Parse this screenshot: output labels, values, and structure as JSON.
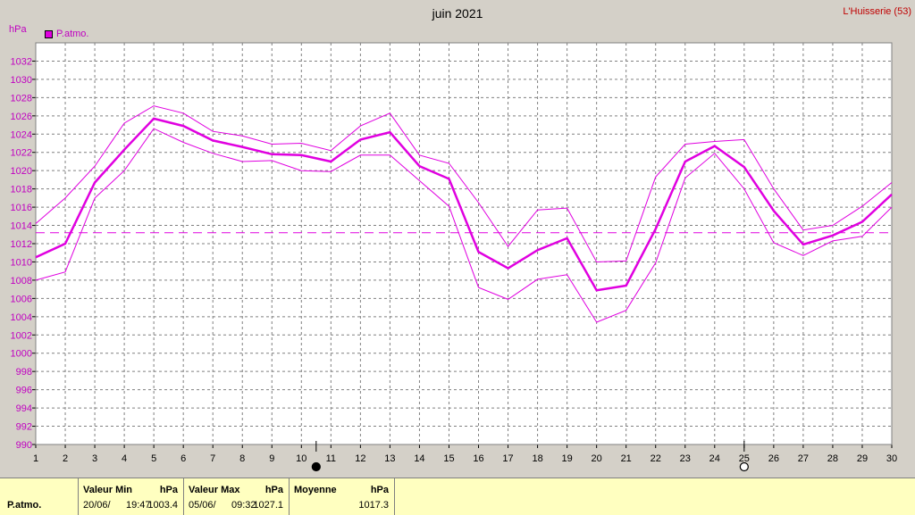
{
  "header": {
    "title": "juin 2021",
    "station": "L'Huisserie (53)",
    "unit": "hPa",
    "legend_label": "P.atmo."
  },
  "chart_data": {
    "type": "line",
    "title": "juin 2021",
    "ylabel": "hPa",
    "x": [
      1,
      2,
      3,
      4,
      5,
      6,
      7,
      8,
      9,
      10,
      11,
      12,
      13,
      14,
      15,
      16,
      17,
      18,
      19,
      20,
      21,
      22,
      23,
      24,
      25,
      26,
      27,
      28,
      29,
      30
    ],
    "ylim": [
      990,
      1034
    ],
    "yticks": [
      990,
      992,
      994,
      996,
      998,
      1000,
      1002,
      1004,
      1006,
      1008,
      1010,
      1012,
      1014,
      1016,
      1018,
      1020,
      1022,
      1024,
      1026,
      1028,
      1030,
      1032
    ],
    "grid": true,
    "series": [
      {
        "name": "P.atmo.",
        "role": "mean",
        "values": [
          1010.5,
          1012.0,
          1018.7,
          1022.3,
          1025.7,
          1024.9,
          1023.3,
          1022.6,
          1021.8,
          1021.7,
          1021.0,
          1023.4,
          1024.2,
          1020.5,
          1019.1,
          1011.1,
          1009.3,
          1011.3,
          1012.6,
          1006.9,
          1007.4,
          1013.6,
          1021.0,
          1022.7,
          1020.4,
          1015.6,
          1011.9,
          1012.9,
          1014.4,
          1017.4
        ]
      },
      {
        "role": "max",
        "values": [
          1014.2,
          1017.0,
          1020.5,
          1025.2,
          1027.1,
          1026.3,
          1024.3,
          1023.8,
          1022.9,
          1023.0,
          1022.2,
          1024.9,
          1026.3,
          1021.7,
          1020.8,
          1016.5,
          1011.7,
          1015.7,
          1015.9,
          1010.0,
          1010.1,
          1019.3,
          1022.9,
          1023.2,
          1023.4,
          1018.0,
          1013.5,
          1014.0,
          1016.1,
          1018.7
        ]
      },
      {
        "role": "min",
        "values": [
          1008.0,
          1008.9,
          1017.0,
          1020.0,
          1024.6,
          1023.1,
          1021.9,
          1021.0,
          1021.1,
          1020.0,
          1019.9,
          1021.7,
          1021.7,
          1018.9,
          1016.1,
          1007.2,
          1005.9,
          1008.1,
          1008.6,
          1003.4,
          1004.7,
          1009.9,
          1019.2,
          1021.9,
          1018.0,
          1012.1,
          1010.7,
          1012.3,
          1012.8,
          1016.0
        ]
      }
    ],
    "average_line": 1013.2,
    "moon_phases": [
      {
        "day": 10.5,
        "phase": "new"
      },
      {
        "day": 25,
        "phase": "full"
      }
    ],
    "colors": {
      "series": "#e000e0",
      "grid": "#808080",
      "plot_bg": "#ffffff",
      "axis_text": "#c000c0"
    }
  },
  "summary": {
    "row_label": "P.atmo.",
    "min": {
      "header": "Valeur Min",
      "unit": "hPa",
      "date": "20/06/",
      "time": "19:47",
      "value": "1003.4"
    },
    "max": {
      "header": "Valeur Max",
      "unit": "hPa",
      "date": "05/06/",
      "time": "09:32",
      "value": "1027.1"
    },
    "avg": {
      "header": "Moyenne",
      "unit": "hPa",
      "value": "1017.3"
    }
  }
}
